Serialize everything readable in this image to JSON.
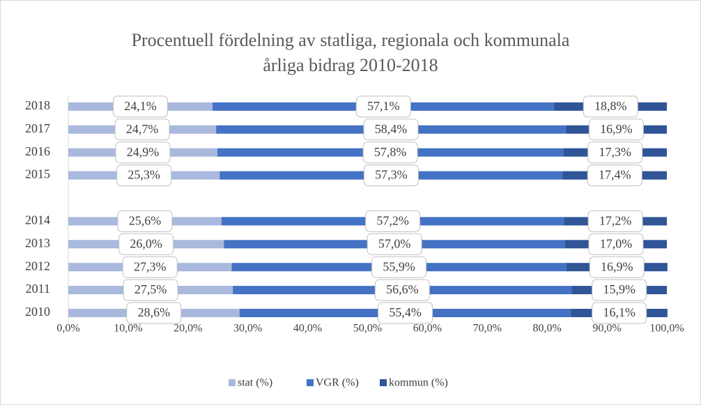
{
  "chart_data": {
    "type": "stacked_bar_horizontal",
    "title": [
      "Procentuell fördelning av statliga, regionala och kommunala",
      "årliga bidrag 2010-2018"
    ],
    "categories": [
      "2010",
      "2011",
      "2012",
      "2013",
      "2014",
      null,
      "2015",
      "2016",
      "2017",
      "2018"
    ],
    "series": [
      {
        "name": "stat (%)",
        "color": "#a9b8dd",
        "values": [
          28.6,
          27.5,
          27.3,
          26.0,
          25.6,
          null,
          25.3,
          24.9,
          24.7,
          24.1
        ],
        "value_labels": [
          "28,6%",
          "27,5%",
          "27,3%",
          "26,0%",
          "25,6%",
          null,
          "25,3%",
          "24,9%",
          "24,7%",
          "24,1%"
        ]
      },
      {
        "name": "VGR (%)",
        "color": "#4472c4",
        "values": [
          55.4,
          56.6,
          55.9,
          57.0,
          57.2,
          null,
          57.3,
          57.8,
          58.4,
          57.1
        ],
        "value_labels": [
          "55,4%",
          "56,6%",
          "55,9%",
          "57,0%",
          "57,2%",
          null,
          "57,3%",
          "57,8%",
          "58,4%",
          "57,1%"
        ]
      },
      {
        "name": "kommun (%)",
        "color": "#2f5597",
        "values": [
          16.1,
          15.9,
          16.9,
          17.0,
          17.2,
          null,
          17.4,
          17.3,
          16.9,
          18.8
        ],
        "value_labels": [
          "16,1%",
          "15,9%",
          "16,9%",
          "17,0%",
          "17,2%",
          null,
          "17,4%",
          "17,3%",
          "16,9%",
          "18,8%"
        ]
      }
    ],
    "xlim": [
      0,
      100
    ],
    "xticks": [
      {
        "value": 0,
        "label": "0,0%"
      },
      {
        "value": 10,
        "label": "10,0%"
      },
      {
        "value": 20,
        "label": "20,0%"
      },
      {
        "value": 30,
        "label": "30,0%"
      },
      {
        "value": 40,
        "label": "40,0%"
      },
      {
        "value": 50,
        "label": "50,0%"
      },
      {
        "value": 60,
        "label": "60,0%"
      },
      {
        "value": 70,
        "label": "70,0%"
      },
      {
        "value": 80,
        "label": "80,0%"
      },
      {
        "value": 90,
        "label": "90,0%"
      },
      {
        "value": 100,
        "label": "100,0%"
      }
    ],
    "grid": false,
    "legend": "bottom"
  }
}
